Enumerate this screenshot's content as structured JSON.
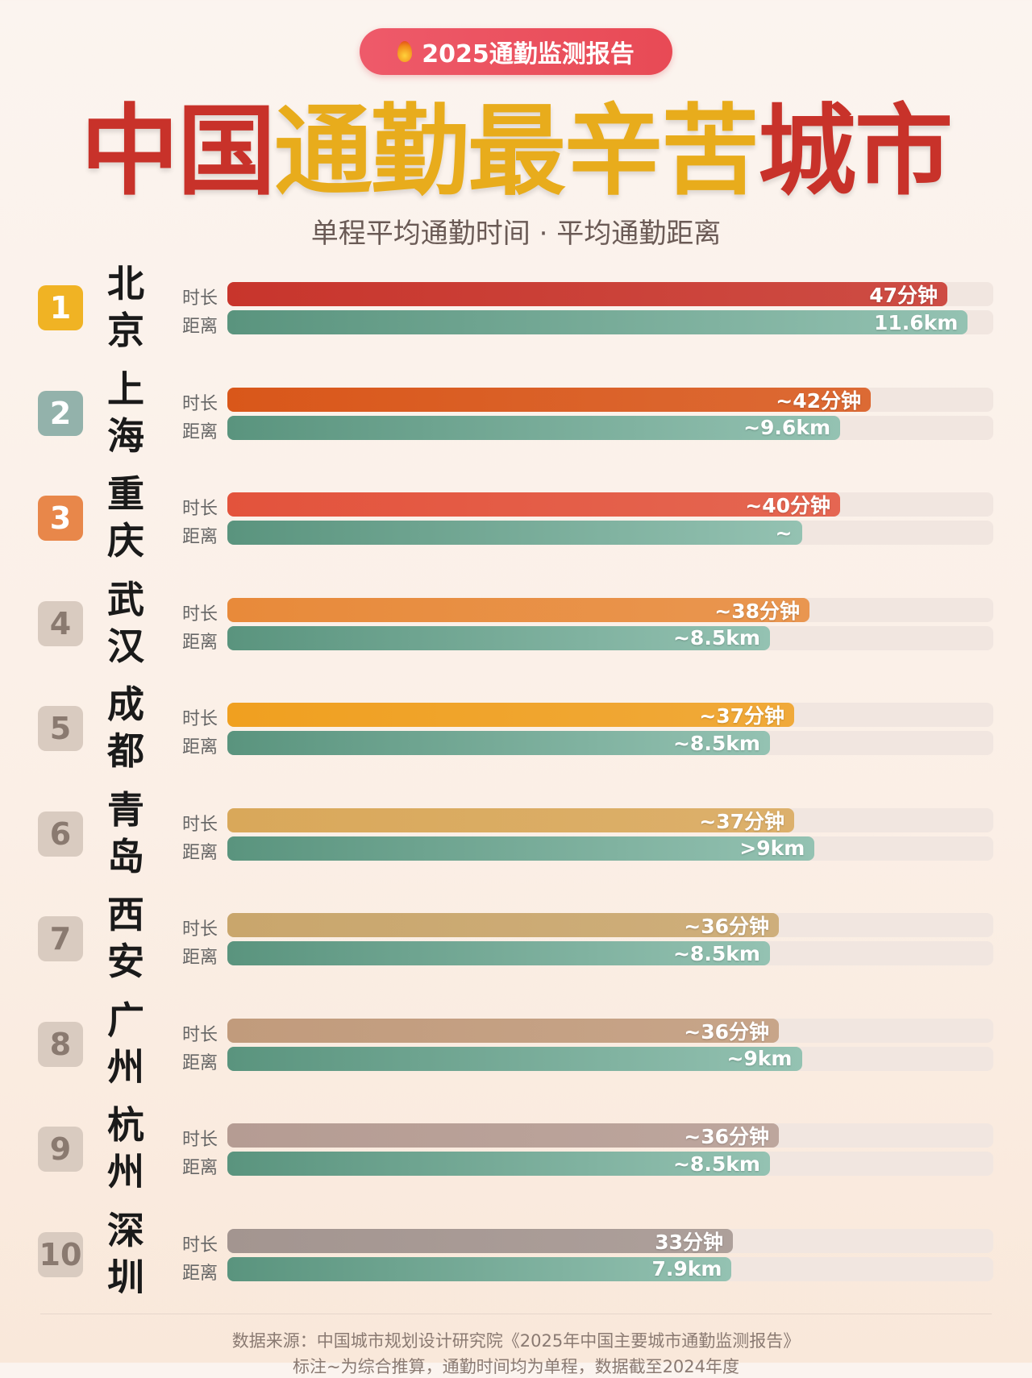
{
  "header": {
    "badge_icon": "flame-icon",
    "badge_text": "2025通勤监测报告",
    "title_parts": [
      {
        "text": "中国",
        "color": "#c8322a"
      },
      {
        "text": "通勤最辛苦",
        "color": "#e8ac1c"
      },
      {
        "text": "城市",
        "color": "#c8322a"
      }
    ],
    "subtitle": "单程平均通勤时间 · 平均通勤距离"
  },
  "row_labels": {
    "time": "时长",
    "distance": "距离"
  },
  "chart_data": {
    "type": "bar",
    "orientation": "horizontal",
    "categories": [
      "北京",
      "上海",
      "重庆",
      "武汉",
      "成都",
      "青岛",
      "西安",
      "广州",
      "杭州",
      "深圳"
    ],
    "ranks": [
      "1",
      "2",
      "3",
      "4",
      "5",
      "6",
      "7",
      "8",
      "9",
      "10"
    ],
    "rank_colors": [
      "#f0b324",
      "#93b2ab",
      "#e8874a",
      "#d9cbc0",
      "#d9cbc0",
      "#d9cbc0",
      "#d9cbc0",
      "#d9cbc0",
      "#d9cbc0",
      "#d9cbc0"
    ],
    "series": [
      {
        "name": "时长",
        "unit": "分钟",
        "xlim": [
          0,
          50
        ],
        "values": [
          47,
          42,
          40,
          38,
          37,
          37,
          36,
          36,
          36,
          33
        ],
        "labels": [
          "47分钟",
          "~42分钟",
          "~40分钟",
          "~38分钟",
          "~37分钟",
          "~37分钟",
          "~36分钟",
          "~36分钟",
          "~36分钟",
          "33分钟"
        ],
        "colors": [
          "#c8352c",
          "#d9571a",
          "#e3533c",
          "#e88a3a",
          "#f0a020",
          "#d9a85a",
          "#c9a66c",
          "#c19b7c",
          "#b59c93",
          "#a39590"
        ]
      },
      {
        "name": "距离",
        "unit": "km",
        "xlim": [
          0,
          12
        ],
        "values": [
          11.6,
          9.6,
          9,
          8.5,
          8.5,
          9.2,
          8.5,
          9,
          8.5,
          7.9
        ],
        "labels": [
          "11.6km",
          "~9.6km",
          "~",
          "~8.5km",
          "~8.5km",
          ">9km",
          "~8.5km",
          "~9km",
          "~8.5km",
          "7.9km"
        ],
        "color": "#5a947e"
      }
    ]
  },
  "footer": {
    "source": "数据来源：中国城市规划设计研究院《2025年中国主要城市通勤监测报告》",
    "note": "标注~为综合推算，通勤时间均为单程，数据截至2024年度"
  }
}
